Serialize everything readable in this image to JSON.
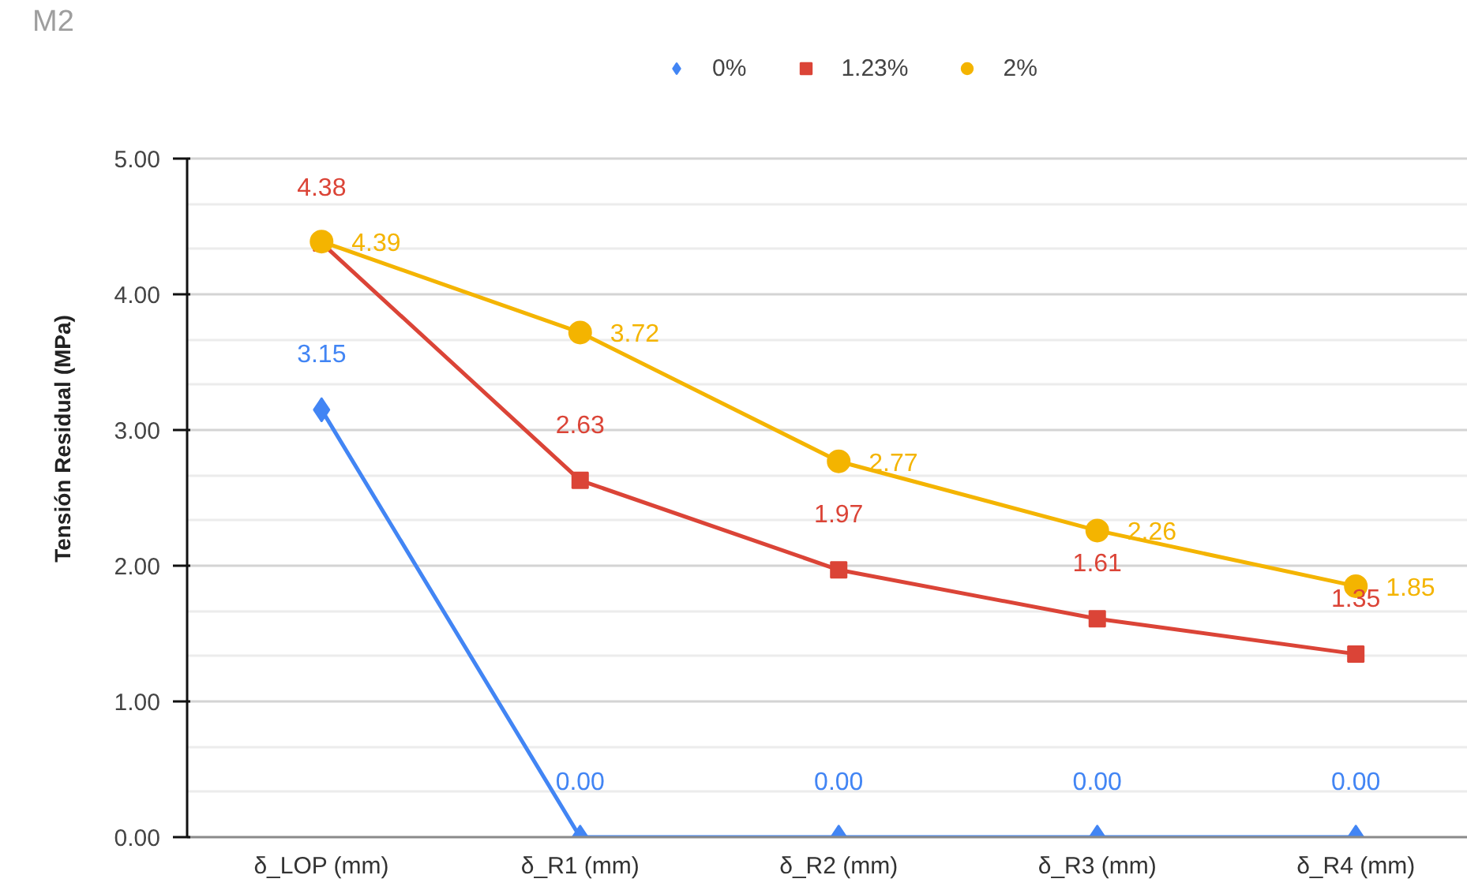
{
  "chart_data": {
    "type": "line",
    "title": "M2",
    "ylabel": "Tensión Residual (MPa)",
    "categories": [
      "δ_LOP (mm)",
      "δ_R1 (mm)",
      "δ_R2 (mm)",
      "δ_R3 (mm)",
      "δ_R4 (mm)"
    ],
    "series": [
      {
        "name": "0%",
        "color": "#4285f4",
        "marker": "diamond",
        "values": [
          3.15,
          0,
          0,
          0,
          0
        ],
        "value_labels": [
          "3.15",
          "0.00",
          "0.00",
          "0.00",
          "0.00"
        ]
      },
      {
        "name": "1.23%",
        "color": "#db4437",
        "marker": "square",
        "values": [
          4.38,
          2.63,
          1.97,
          1.61,
          1.35
        ],
        "value_labels": [
          "4.38",
          "2.63",
          "1.97",
          "1.61",
          "1.35"
        ]
      },
      {
        "name": "2%",
        "color": "#f4b400",
        "marker": "circle",
        "values": [
          4.39,
          3.72,
          2.77,
          2.26,
          1.85
        ],
        "value_labels": [
          "4.39",
          "3.72",
          "2.77",
          "2.26",
          "1.85"
        ]
      }
    ],
    "ylim": [
      0,
      5
    ],
    "yticks": [
      {
        "value": 0,
        "label": "0.00"
      },
      {
        "value": 1,
        "label": "1.00"
      },
      {
        "value": 2,
        "label": "2.00"
      },
      {
        "value": 3,
        "label": "3.00"
      },
      {
        "value": 4,
        "label": "4.00"
      },
      {
        "value": 5,
        "label": "5.00"
      }
    ],
    "grid": "y",
    "legend": "top"
  }
}
